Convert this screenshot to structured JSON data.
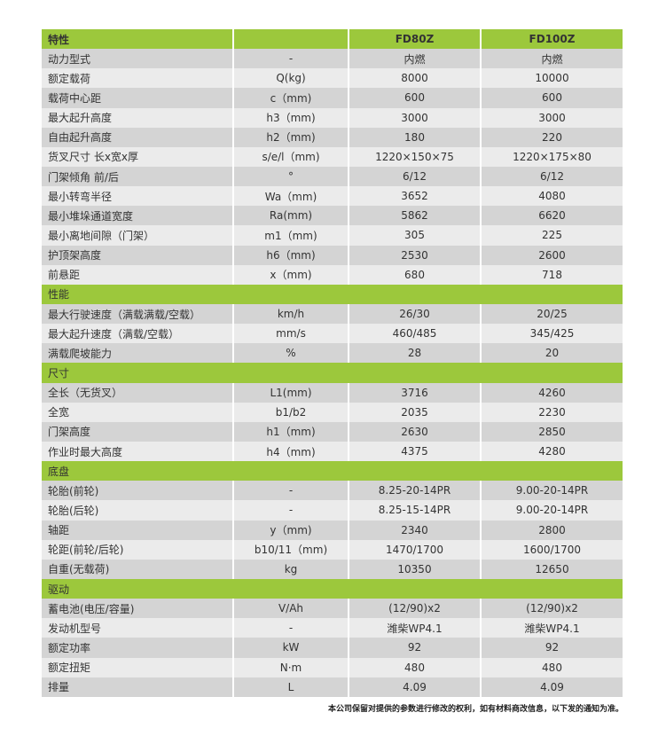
{
  "header": {
    "label": "特性",
    "unit": "",
    "col1": "FD80Z",
    "col2": "FD100Z"
  },
  "colors": {
    "section_green": "#9cc83c",
    "row_dark": "#d4d4d4",
    "row_light": "#ebebeb"
  },
  "sections": [
    {
      "title": "",
      "rows": [
        [
          "动力型式",
          "-",
          "内燃",
          "内燃"
        ],
        [
          "额定载荷",
          "Q(kg)",
          "8000",
          "10000"
        ],
        [
          "载荷中心距",
          "c（mm)",
          "600",
          "600"
        ],
        [
          "最大起升高度",
          "h3（mm)",
          "3000",
          "3000"
        ],
        [
          "自由起升高度",
          "h2（mm)",
          "180",
          "220"
        ],
        [
          "货叉尺寸 长x宽x厚",
          "s/e/l（mm)",
          "1220×150×75",
          "1220×175×80"
        ],
        [
          "门架倾角 前/后",
          "°",
          "6/12",
          "6/12"
        ],
        [
          "最小转弯半径",
          "Wa（mm)",
          "3652",
          "4080"
        ],
        [
          "最小堆垛通道宽度",
          "Ra(mm)",
          "5862",
          "6620"
        ],
        [
          "最小离地间隙（门架）",
          "m1（mm)",
          "305",
          "225"
        ],
        [
          "护顶架高度",
          "h6（mm)",
          "2530",
          "2600"
        ],
        [
          "前悬距",
          "x（mm)",
          "680",
          "718"
        ]
      ]
    },
    {
      "title": "性能",
      "rows": [
        [
          "最大行驶速度（满载满载/空载）",
          "km/h",
          "26/30",
          "20/25"
        ],
        [
          "最大起升速度（满载/空载）",
          "mm/s",
          "460/485",
          "345/425"
        ],
        [
          "满载爬坡能力",
          "%",
          "28",
          "20"
        ]
      ]
    },
    {
      "title": "尺寸",
      "rows": [
        [
          "全长（无货叉）",
          "L1(mm)",
          "3716",
          "4260"
        ],
        [
          "全宽",
          "b1/b2",
          "2035",
          "2230"
        ],
        [
          "门架高度",
          "h1（mm)",
          "2630",
          "2850"
        ],
        [
          "作业时最大高度",
          "h4（mm)",
          "4375",
          "4280"
        ]
      ]
    },
    {
      "title": "底盘",
      "rows": [
        [
          "轮胎(前轮)",
          "-",
          "8.25-20-14PR",
          "9.00-20-14PR"
        ],
        [
          "轮胎(后轮)",
          "-",
          "8.25-15-14PR",
          "9.00-20-14PR"
        ],
        [
          "轴距",
          "y（mm)",
          "2340",
          "2800"
        ],
        [
          "轮距(前轮/后轮)",
          "b10/11（mm)",
          "1470/1700",
          "1600/1700"
        ],
        [
          "自重(无载荷)",
          "kg",
          "10350",
          "12650"
        ]
      ]
    },
    {
      "title": "驱动",
      "rows": [
        [
          "蓄电池(电压/容量)",
          "V/Ah",
          "(12/90)x2",
          "(12/90)x2"
        ],
        [
          "发动机型号",
          "-",
          "潍柴WP4.1",
          "潍柴WP4.1"
        ],
        [
          "额定功率",
          "kW",
          "92",
          "92"
        ],
        [
          "额定扭矩",
          "N·m",
          "480",
          "480"
        ],
        [
          "排量",
          "L",
          "4.09",
          "4.09"
        ]
      ]
    }
  ],
  "footnote": "本公司保留对提供的参数进行修改的权利，如有材料商改信息，以下发的通知为准。"
}
